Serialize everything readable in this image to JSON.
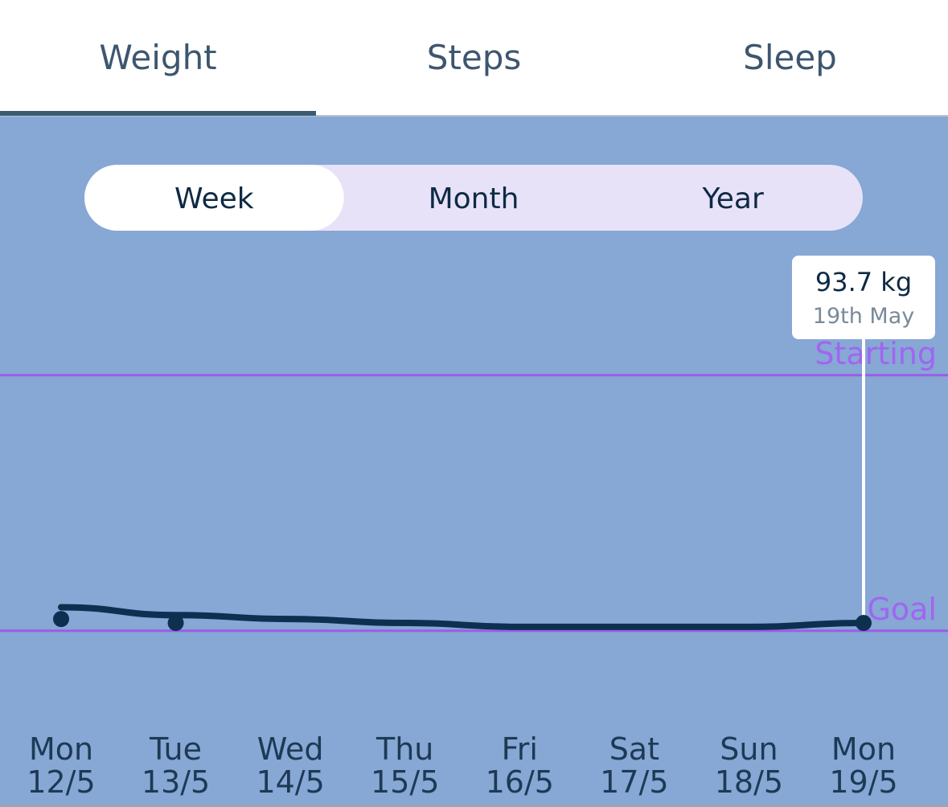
{
  "tabs": {
    "items": [
      "Weight",
      "Steps",
      "Sleep"
    ],
    "active": 0
  },
  "range_selector": {
    "items": [
      "Week",
      "Month",
      "Year"
    ],
    "active": 0
  },
  "chart_data": {
    "type": "line",
    "weekdays": [
      "Mon",
      "Tue",
      "Wed",
      "Thu",
      "Fri",
      "Sat",
      "Sun",
      "Mon"
    ],
    "categories": [
      "12/5",
      "13/5",
      "14/5",
      "15/5",
      "16/5",
      "17/5",
      "18/5",
      "19/5"
    ],
    "series": [
      {
        "color": "#0d3050",
        "style": "trend",
        "values": [
          94.1,
          93.9,
          93.8,
          93.7,
          93.6,
          93.6,
          93.6,
          93.7
        ]
      },
      {
        "color": "#0d3050",
        "style": "points",
        "values": [
          93.8,
          93.7,
          null,
          null,
          null,
          null,
          null,
          93.7
        ]
      }
    ],
    "reference_lines": [
      {
        "label": "Starting",
        "value": 100,
        "color": "#9b5de5"
      },
      {
        "label": "Goal",
        "value": 93.5,
        "color": "#9b5de5"
      }
    ],
    "ylim": [
      91.35,
      103
    ],
    "tooltip": {
      "index": 7,
      "label": "93.7 kg",
      "date": "19th May"
    }
  }
}
